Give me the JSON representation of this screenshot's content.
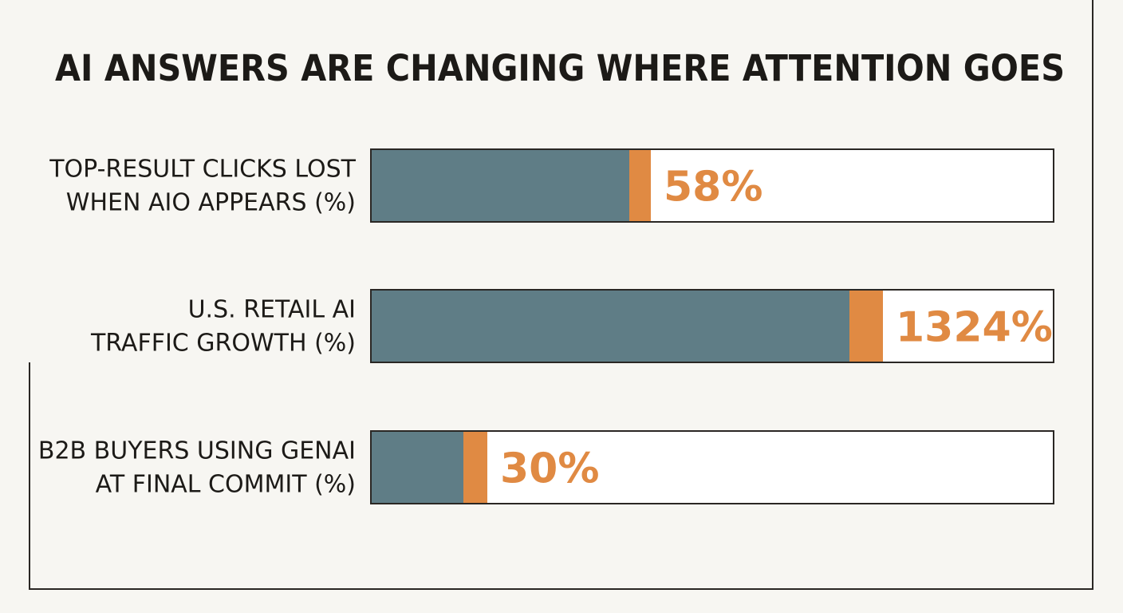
{
  "chart_data": {
    "type": "bar",
    "orientation": "horizontal",
    "title": "AI ANSWERS ARE CHANGING WHERE ATTENTION GOES",
    "categories": [
      [
        "TOP-RESULT CLICKS LOST",
        "WHEN AIO APPEARS (%)"
      ],
      [
        "U.S. RETAIL AI",
        "TRAFFIC GROWTH (%)"
      ],
      [
        "B2B BUYERS USING GENAI",
        "AT FINAL COMMIT (%)"
      ]
    ],
    "values": [
      58,
      1324,
      30
    ],
    "value_labels": [
      "58%",
      "1324%",
      "30%"
    ],
    "fill_fraction": [
      0.41,
      0.75,
      0.17
    ],
    "grid": false,
    "legend": "none"
  },
  "colors": {
    "background": "#f7f6f2",
    "bar": "#5f7d86",
    "accent": "#e08a43",
    "outline": "#2a2724",
    "track": "#ffffff",
    "text": "#1c1a17"
  }
}
